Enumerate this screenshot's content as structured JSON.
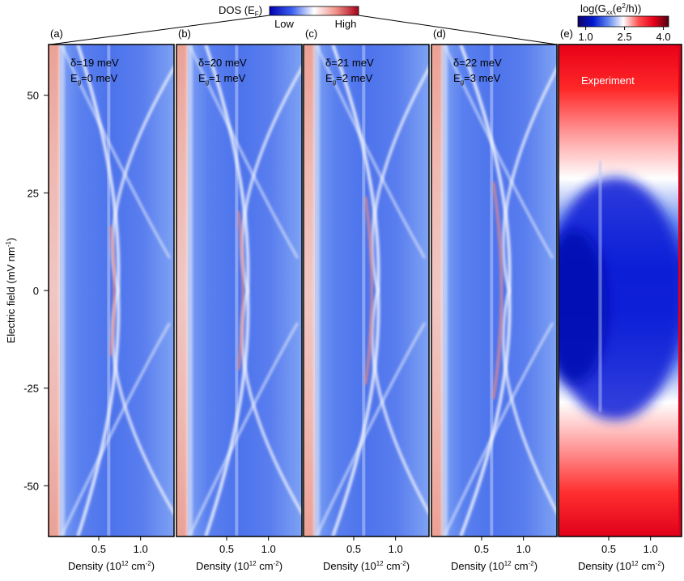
{
  "chart_data": {
    "type": "heatmap",
    "colorbar_left": {
      "title": "DOS (E",
      "title_sub": "F",
      "title_end": ")",
      "low_label": "Low",
      "high_label": "High",
      "colors": [
        "#0000b0",
        "#3a5ff0",
        "#ffffff",
        "#f08f86",
        "#a80018"
      ]
    },
    "colorbar_right": {
      "title": "log(G",
      "title_sub": "xx",
      "title_mid": "(e",
      "title_sup": "2",
      "title_end": "/h))",
      "ticks": [
        "1.0",
        "2.5",
        "4.0"
      ],
      "tick_values": [
        1.0,
        2.5,
        4.0
      ],
      "range": [
        0.7,
        4.2
      ],
      "colors": [
        "#10006a",
        "#0018d0",
        "#5f86ee",
        "#ffffff",
        "#ff5050",
        "#e8001c",
        "#500010"
      ]
    },
    "ylabel": "Electric field (mV nm",
    "ylabel_sup": "-1",
    "ylabel_end": ")",
    "yticks": [
      "50",
      "25",
      "0",
      "-25",
      "-50"
    ],
    "ytick_values": [
      50,
      25,
      0,
      -25,
      -50
    ],
    "ylim": [
      -63,
      63
    ],
    "xlabel": "Density (10",
    "xlabel_sup": "12",
    "xlabel_end": " cm",
    "xlabel_sup2": "-2",
    "xlabel_close": ")",
    "xticks": [
      "0.5",
      "1.0"
    ],
    "xtick_values": [
      0.5,
      1.0
    ],
    "xlim": [
      -0.1,
      1.4
    ],
    "panels": [
      {
        "tag": "(a)",
        "delta": "δ=19 meV",
        "eg_pre": "E",
        "eg_sub": "g",
        "eg_post": "=0 meV",
        "gap_meV": 0,
        "line_x_at_zero": 0.73,
        "line_x_at_max": 0.62,
        "vertical_line_x": 0.62
      },
      {
        "tag": "(b)",
        "delta": "δ=20 meV",
        "eg_pre": "E",
        "eg_sub": "g",
        "eg_post": "=1 meV",
        "gap_meV": 1,
        "line_x_at_zero": 0.75,
        "line_x_at_max": 0.62,
        "vertical_line_x": 0.62
      },
      {
        "tag": "(c)",
        "delta": "δ=21 meV",
        "eg_pre": "E",
        "eg_sub": "g",
        "eg_post": "=2 meV",
        "gap_meV": 2,
        "line_x_at_zero": 0.79,
        "line_x_at_max": 0.62,
        "vertical_line_x": 0.62
      },
      {
        "tag": "(d)",
        "delta": "δ=22 meV",
        "eg_pre": "E",
        "eg_sub": "g",
        "eg_post": "=3 meV",
        "gap_meV": 3,
        "line_x_at_zero": 0.83,
        "line_x_at_max": 0.62,
        "vertical_line_x": 0.62
      }
    ],
    "experiment": {
      "tag": "(e)",
      "label": "Experiment"
    },
    "grid": false
  }
}
